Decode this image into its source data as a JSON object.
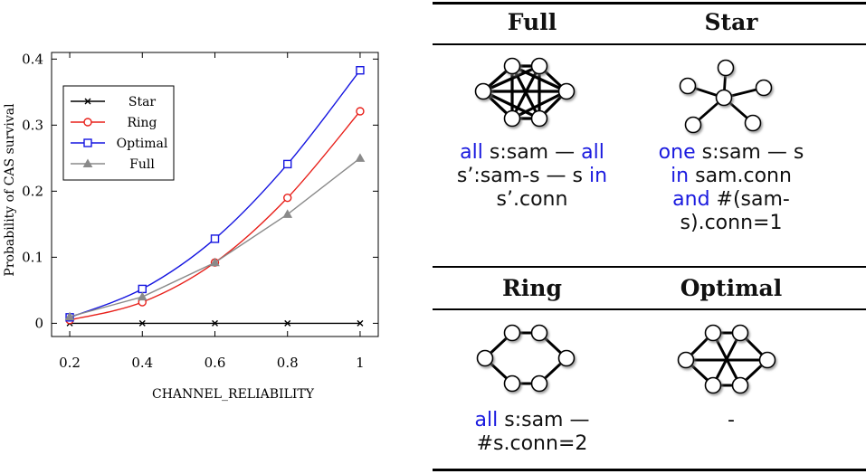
{
  "chart_data": {
    "type": "line",
    "xlabel": "CHANNEL_RELIABILITY",
    "ylabel": "Probability of CAS survival",
    "xlim": [
      0.15,
      1.05
    ],
    "ylim": [
      -0.02,
      0.41
    ],
    "xticks": [
      "0.2",
      "0.4",
      "0.6",
      "0.8",
      "1"
    ],
    "xtick_values": [
      0.2,
      0.4,
      0.6,
      0.8,
      1.0
    ],
    "yticks": [
      "0",
      "0.1",
      "0.2",
      "0.3",
      "0.4"
    ],
    "ytick_values": [
      0,
      0.1,
      0.2,
      0.3,
      0.4
    ],
    "legend_position": "upper-left",
    "grid": false,
    "x": [
      0.2,
      0.4,
      0.6,
      0.8,
      1.0
    ],
    "series": [
      {
        "name": "Star",
        "values": [
          0,
          0,
          0,
          0,
          0
        ],
        "color": "#000000",
        "marker": "x"
      },
      {
        "name": "Ring",
        "values": [
          0.005,
          0.032,
          0.092,
          0.19,
          0.321
        ],
        "color": "#e8201a",
        "marker": "circle"
      },
      {
        "name": "Optimal",
        "values": [
          0.009,
          0.052,
          0.128,
          0.241,
          0.383
        ],
        "color": "#1515e0",
        "marker": "square"
      },
      {
        "name": "Full",
        "values": [
          0.01,
          0.04,
          0.092,
          0.165,
          0.25
        ],
        "color": "#8a8a8a",
        "marker": "triangle"
      }
    ]
  },
  "table": {
    "cells": [
      {
        "header": "Full",
        "formula": [
          [
            {
              "t": "all",
              "kw": true
            },
            {
              "t": " s:sam — ",
              "kw": false
            },
            {
              "t": "all",
              "kw": true
            }
          ],
          [
            {
              "t": "s’:sam-s — s ",
              "kw": false
            },
            {
              "t": "in",
              "kw": true
            }
          ],
          [
            {
              "t": "s’.conn",
              "kw": false
            }
          ]
        ]
      },
      {
        "header": "Star",
        "formula": [
          [
            {
              "t": "one",
              "kw": true
            },
            {
              "t": " s:sam — s",
              "kw": false
            }
          ],
          [
            {
              "t": "in",
              "kw": true
            },
            {
              "t": " sam.conn",
              "kw": false
            }
          ],
          [
            {
              "t": "and",
              "kw": true
            },
            {
              "t": " #(sam-",
              "kw": false
            }
          ],
          [
            {
              "t": "s).conn=1",
              "kw": false
            }
          ]
        ]
      },
      {
        "header": "Ring",
        "formula": [
          [
            {
              "t": "all",
              "kw": true
            },
            {
              "t": " s:sam —",
              "kw": false
            }
          ],
          [
            {
              "t": "#s.conn=2",
              "kw": false
            }
          ]
        ]
      },
      {
        "header": "Optimal",
        "formula": [
          [
            {
              "t": "-",
              "kw": false
            }
          ]
        ]
      }
    ]
  }
}
